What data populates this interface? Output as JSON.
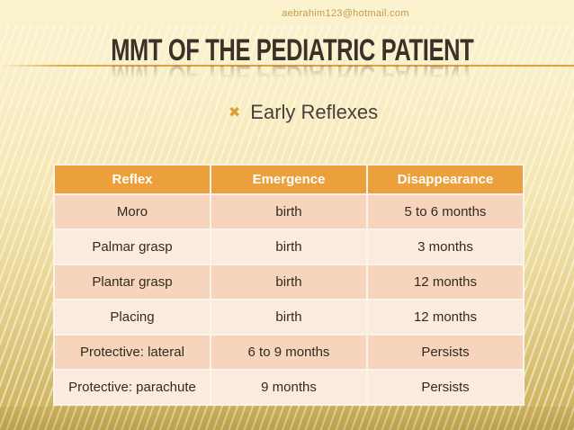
{
  "header": {
    "email": "aebrahim123@hotmail.com"
  },
  "title": "MMT OF THE PEDIATRIC PATIENT",
  "bullet": {
    "marker": "✖",
    "label": "Early Reflexes"
  },
  "table": {
    "columns": [
      "Reflex",
      "Emergence",
      "Disappearance"
    ],
    "rows": [
      [
        "Moro",
        "birth",
        "5 to 6 months"
      ],
      [
        "Palmar grasp",
        "birth",
        "3 months"
      ],
      [
        "Plantar grasp",
        "birth",
        "12 months"
      ],
      [
        "Placing",
        "birth",
        "12 months"
      ],
      [
        "Protective: lateral",
        "6 to 9 months",
        "Persists"
      ],
      [
        "Protective: parachute",
        "9 months",
        "Persists"
      ]
    ]
  },
  "colors": {
    "header_bg": "#ECA03C",
    "row_dark": "#F6D5BC",
    "row_light": "#FBEBDE",
    "grid_color": "#FBF4EB",
    "accent_orange": "#DD9F3D",
    "title_color": "#3A3129",
    "email_color": "#C9974D"
  }
}
